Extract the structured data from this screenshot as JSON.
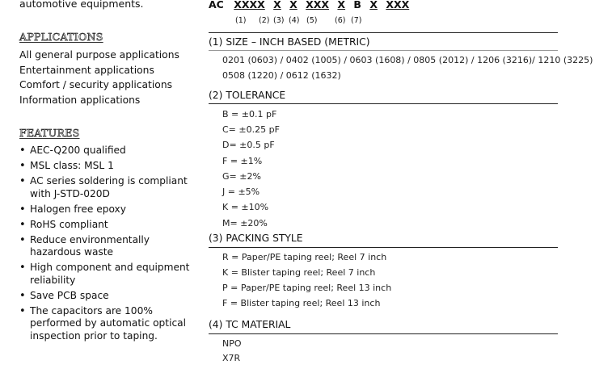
{
  "left": {
    "intro_text": "automotive equipments.",
    "applications": {
      "heading": "APPLICATIONS",
      "items": [
        "All general purpose applications",
        "Entertainment applications",
        "Comfort / security applications",
        "Information applications"
      ]
    },
    "features": {
      "heading": "FEATURES",
      "items": [
        "AEC-Q200 qualified",
        "MSL class: MSL 1",
        "AC series soldering is compliant with J-STD-020D",
        "Halogen free epoxy",
        "RoHS compliant",
        "Reduce environmentally hazardous waste",
        "High component and equipment reliability",
        "Save PCB space",
        "The capacitors are 100% performed by automatic optical inspection prior to taping."
      ]
    }
  },
  "code": {
    "prefix": "AC",
    "parts": [
      "XXXX",
      "X",
      "X",
      "XXX",
      "X",
      "B",
      "X",
      "XXX"
    ],
    "numbers": [
      "(1)",
      "(2)",
      "(3)",
      "(4)",
      "(5)",
      "(6)",
      "(7)"
    ]
  },
  "sections": {
    "size": {
      "heading": "(1) SIZE – INCH BASED (METRIC)",
      "line1": "0201 (0603) / 0402 (1005) / 0603 (1608) / 0805 (2012) / 1206 (3216)/ 1210 (3225) /",
      "line2": "0508 (1220) / 0612 (1632)"
    },
    "tolerance": {
      "heading": "(2) TOLERANCE",
      "options": [
        "B = ±0.1 pF",
        "C= ±0.25 pF",
        "D= ±0.5 pF",
        "F = ±1%",
        "G= ±2%",
        "J = ±5%",
        "K = ±10%",
        "M= ±20%"
      ]
    },
    "packing": {
      "heading": "(3) PACKING STYLE",
      "options": [
        "R = Paper/PE taping reel; Reel 7 inch",
        "K = Blister taping reel; Reel 7 inch",
        "P = Paper/PE taping reel; Reel 13 inch",
        "F = Blister taping reel; Reel 13 inch"
      ]
    },
    "tc_material": {
      "heading": "(4) TC MATERIAL",
      "options": [
        "NPO",
        "X7R"
      ]
    }
  }
}
